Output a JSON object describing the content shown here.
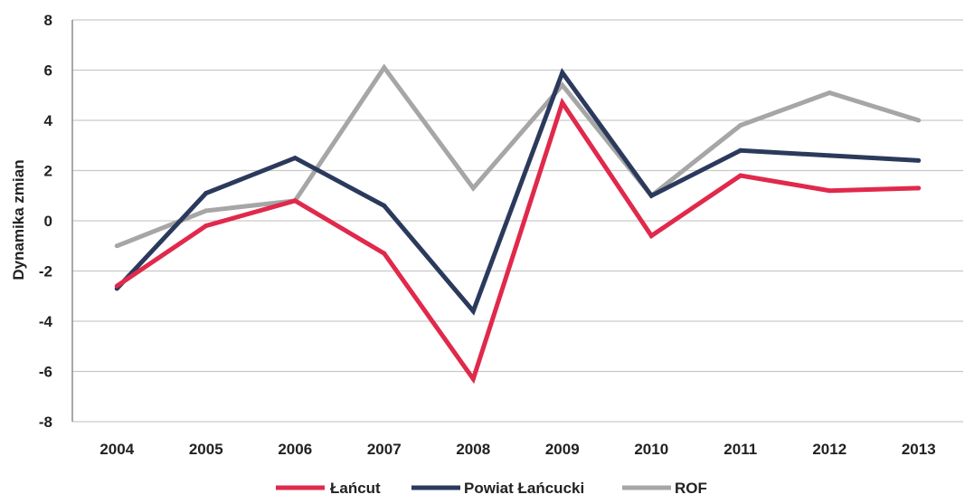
{
  "chart_data": {
    "type": "line",
    "title": "",
    "xlabel": "",
    "ylabel": "Dynamika zmian",
    "x": [
      "2004",
      "2005",
      "2006",
      "2007",
      "2008",
      "2009",
      "2010",
      "2011",
      "2012",
      "2013"
    ],
    "ylim": [
      -8,
      8
    ],
    "yticks": [
      "8",
      "6",
      "4",
      "2",
      "0",
      "-2",
      "-4",
      "-6",
      "-8"
    ],
    "grid": true,
    "legend_position": "bottom",
    "series": [
      {
        "name": "Łańcut",
        "color": "#e0294b",
        "values": [
          -2.6,
          -0.2,
          0.8,
          -1.3,
          -6.3,
          4.7,
          -0.6,
          1.8,
          1.2,
          1.3
        ]
      },
      {
        "name": "Powiat Łańcucki",
        "color": "#2b3a5c",
        "values": [
          -2.7,
          1.1,
          2.5,
          0.6,
          -3.6,
          5.9,
          1.0,
          2.8,
          2.6,
          2.4
        ]
      },
      {
        "name": "ROF",
        "color": "#a6a6a6",
        "values": [
          -1.0,
          0.4,
          0.8,
          6.1,
          1.3,
          5.4,
          1.0,
          3.8,
          5.1,
          4.0
        ]
      }
    ]
  }
}
